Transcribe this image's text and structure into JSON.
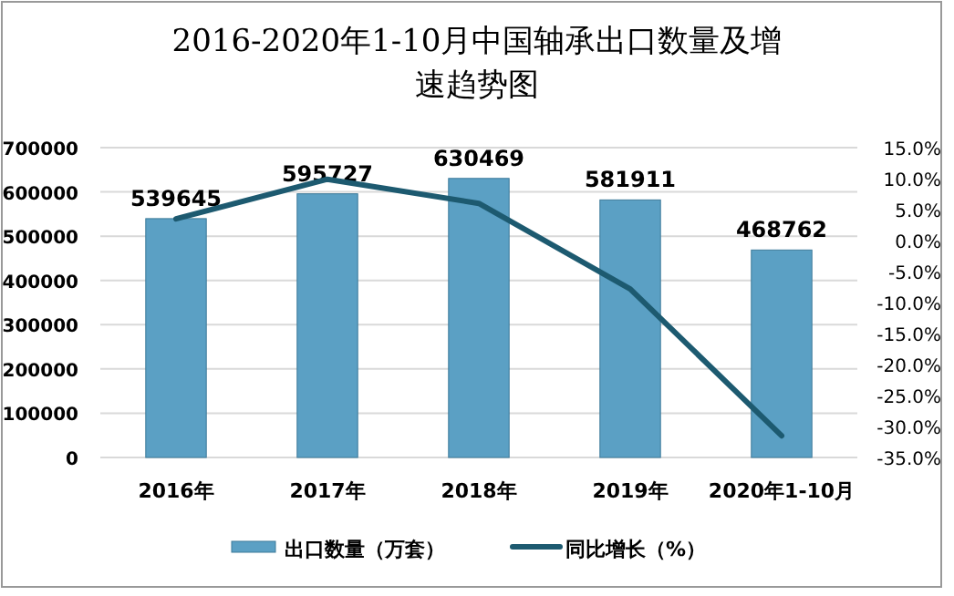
{
  "chart_data": {
    "type": "bar",
    "title": "2016-2020年1-10月中国轴承出口数量及增速趋势图",
    "categories": [
      "2016年",
      "2017年",
      "2018年",
      "2019年",
      "2020年1-10月"
    ],
    "series": [
      {
        "name": "出口数量（万套）",
        "color": "#5ba0c4",
        "values": [
          539645,
          595727,
          630469,
          581911,
          468762
        ],
        "value_labels": [
          "539645",
          "595727",
          "630469",
          "581911",
          "468762"
        ]
      },
      {
        "name": "同比增长（%）",
        "type": "line",
        "axis": "y2",
        "color": "#1d5a70",
        "values": [
          3.5,
          9.9,
          6.0,
          -7.8,
          -31.5
        ]
      }
    ],
    "ylim": [
      0,
      700000
    ],
    "yticks": [
      0,
      100000,
      200000,
      300000,
      400000,
      500000,
      600000,
      700000
    ],
    "y2lim": [
      -35,
      15
    ],
    "y2ticks": [
      {
        "value": 15,
        "label": "15.0%"
      },
      {
        "value": 10,
        "label": "10.0%"
      },
      {
        "value": 5,
        "label": "5.0%"
      },
      {
        "value": 0,
        "label": "0.0%"
      },
      {
        "value": -5,
        "label": "-5.0%"
      },
      {
        "value": -10,
        "label": "-10.0%"
      },
      {
        "value": -15,
        "label": "-15.0%"
      },
      {
        "value": -20,
        "label": "-20.0%"
      },
      {
        "value": -25,
        "label": "-25.0%"
      },
      {
        "value": -30,
        "label": "-30.0%"
      },
      {
        "value": -35,
        "label": "-35.0%"
      }
    ],
    "grid": "y",
    "legend": "bottom",
    "marker": "none",
    "line_style": "solid"
  }
}
